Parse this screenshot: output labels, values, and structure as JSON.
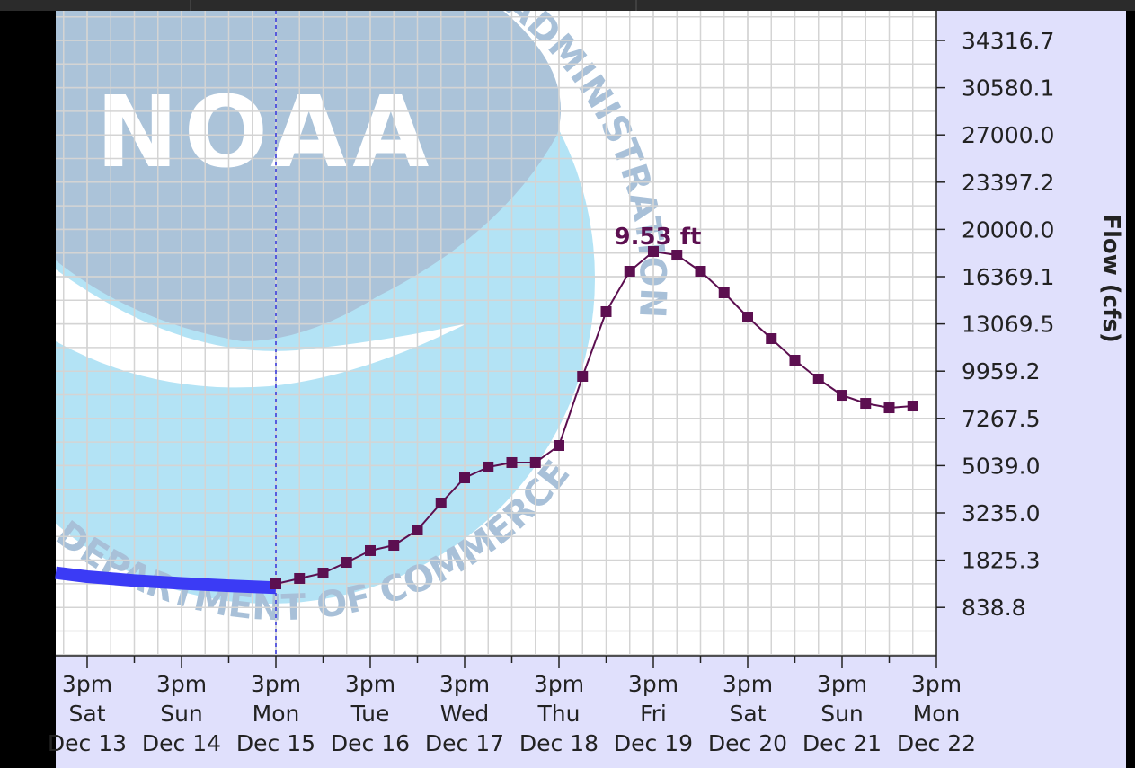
{
  "chart_data": {
    "type": "line",
    "y_axis_label": "Flow (cfs)",
    "annotation": "9.53 ft",
    "watermark": {
      "logo": "NOAA",
      "top_text": "ADMINISTRATION",
      "bottom_text": "DEPARTMENT OF COMMERCE"
    },
    "xlim": [
      "Dec 13 07:00",
      "Dec 22 15:00"
    ],
    "xticks": [
      {
        "value": "Dec 13 15:00",
        "label": "3pm\nSat\nDec 13"
      },
      {
        "value": "Dec 14 15:00",
        "label": "3pm\nSun\nDec 14"
      },
      {
        "value": "Dec 15 15:00",
        "label": "3pm\nMon\nDec 15"
      },
      {
        "value": "Dec 16 15:00",
        "label": "3pm\nTue\nDec 16"
      },
      {
        "value": "Dec 17 15:00",
        "label": "3pm\nWed\nDec 17"
      },
      {
        "value": "Dec 18 15:00",
        "label": "3pm\nThu\nDec 18"
      },
      {
        "value": "Dec 19 15:00",
        "label": "3pm\nFri\nDec 19"
      },
      {
        "value": "Dec 20 15:00",
        "label": "3pm\nSat\nDec 20"
      },
      {
        "value": "Dec 21 15:00",
        "label": "3pm\nSun\nDec 21"
      },
      {
        "value": "Dec 22 15:00",
        "label": "3pm\nMon\nDec 22"
      }
    ],
    "ylim": [
      0,
      37000
    ],
    "yticks": [
      34316.7,
      30580.1,
      {
        "value": 27000,
        "label": "27000.0"
      },
      23397.2,
      {
        "value": 20000,
        "label": "20000.0"
      },
      16369.1,
      13069.5,
      9959.2,
      7267.5,
      {
        "value": 5039,
        "label": "5039.0"
      },
      {
        "value": 3235,
        "label": "3235.0"
      },
      1825.3,
      838.8
    ],
    "grid": true,
    "now_line": "Dec 15 15:00",
    "series": [
      {
        "color": "#3b3bf5",
        "x": [
          "Dec 13 07:00",
          "Dec 13 15:00",
          "Dec 14 03:00",
          "Dec 14 15:00",
          "Dec 15 03:00",
          "Dec 15 15:00"
        ],
        "values": [
          1560,
          1480,
          1400,
          1340,
          1290,
          1250
        ]
      },
      {
        "color": "#5c0f50",
        "x": [
          "Dec 15 15:00",
          "Dec 15 21:00",
          "Dec 16 03:00",
          "Dec 16 09:00",
          "Dec 16 15:00",
          "Dec 16 21:00",
          "Dec 17 03:00",
          "Dec 17 09:00",
          "Dec 17 15:00",
          "Dec 17 21:00",
          "Dec 18 03:00",
          "Dec 18 09:00",
          "Dec 18 15:00",
          "Dec 18 21:00",
          "Dec 19 03:00",
          "Dec 19 09:00",
          "Dec 19 15:00",
          "Dec 19 21:00",
          "Dec 20 03:00",
          "Dec 20 09:00",
          "Dec 20 15:00",
          "Dec 20 21:00",
          "Dec 21 03:00",
          "Dec 21 09:00",
          "Dec 21 15:00",
          "Dec 21 21:00",
          "Dec 22 03:00",
          "Dec 22 09:00"
        ],
        "values": [
          1330,
          1443,
          1555,
          1780,
          2110,
          2270,
          2726,
          3612,
          4572,
          4985,
          5184,
          5184,
          5988,
          9663,
          13924,
          16783,
          18301,
          18025,
          16783,
          15240,
          13545,
          12099,
          10681,
          9509,
          8586,
          8126,
          7870,
          7973
        ]
      }
    ]
  }
}
